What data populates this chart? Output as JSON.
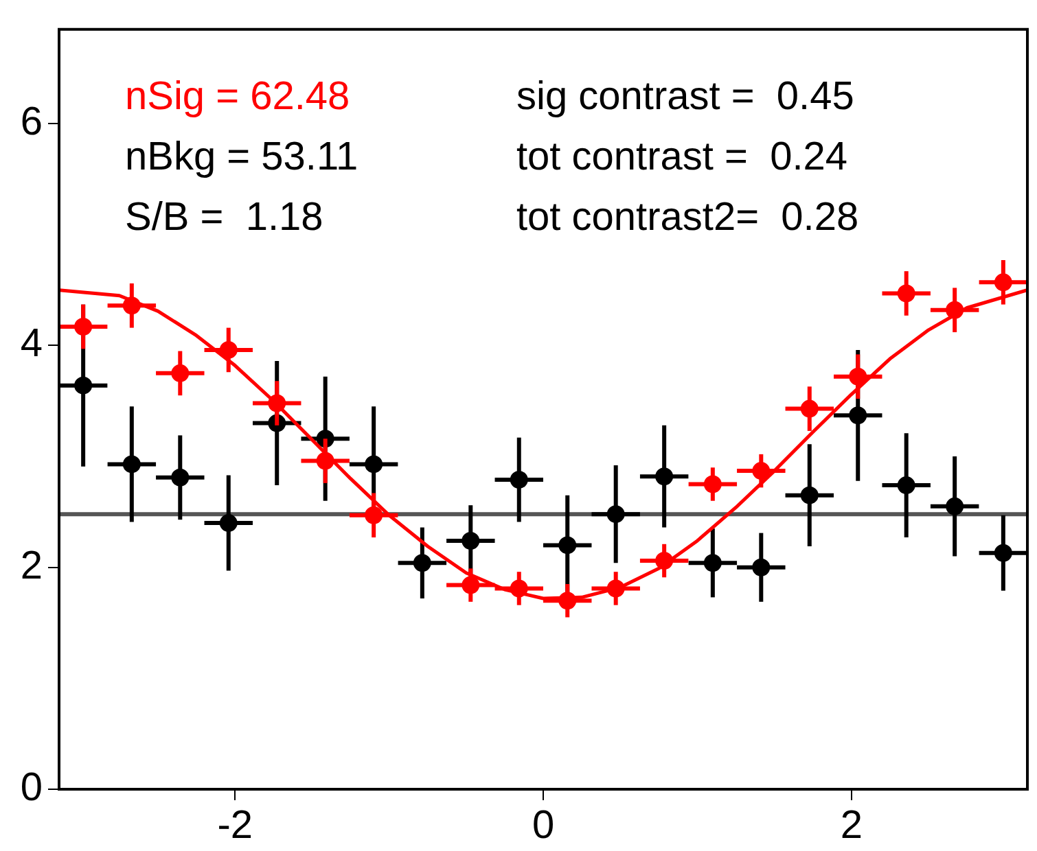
{
  "chart_data": {
    "type": "scatter",
    "xlim": [
      -3.1416,
      3.1416
    ],
    "xticks": [
      -2,
      0,
      2
    ],
    "ylim": [
      0,
      6.85
    ],
    "yticks": [
      0,
      2,
      4,
      6
    ],
    "grid": false,
    "legend": false,
    "marker": "circle",
    "series": [
      {
        "type": "scatter",
        "color": "#ff0000",
        "x": [
          -2.985,
          -2.67,
          -2.356,
          -2.042,
          -1.728,
          -1.414,
          -1.1,
          -0.785,
          -0.471,
          -0.157,
          0.157,
          0.471,
          0.785,
          1.1,
          1.414,
          1.728,
          2.042,
          2.356,
          2.67,
          2.985
        ],
        "values": [
          4.17,
          4.36,
          3.75,
          3.96,
          3.48,
          2.96,
          2.47,
          null,
          1.84,
          1.81,
          1.7,
          1.81,
          2.06,
          2.75,
          2.87,
          3.43,
          3.72,
          4.47,
          4.32,
          4.57
        ],
        "errors": [
          0.2,
          0.2,
          0.2,
          0.2,
          0.2,
          0.2,
          0.2,
          null,
          0.15,
          0.15,
          0.15,
          0.15,
          0.15,
          0.15,
          0.15,
          0.2,
          0.2,
          0.2,
          0.2,
          0.2
        ],
        "xerrors": [
          0.157,
          0.157,
          0.157,
          0.157,
          0.157,
          0.157,
          0.157,
          null,
          0.157,
          0.157,
          0.157,
          0.157,
          0.157,
          0.157,
          0.157,
          0.157,
          0.157,
          0.157,
          0.157,
          0.157
        ]
      },
      {
        "type": "scatter",
        "color": "#000000",
        "x": [
          -2.985,
          -2.67,
          -2.356,
          -2.042,
          -1.728,
          -1.414,
          -1.1,
          -0.785,
          -0.471,
          -0.157,
          0.157,
          0.471,
          0.785,
          1.1,
          1.414,
          1.728,
          2.042,
          2.356,
          2.67,
          2.985
        ],
        "values": [
          3.64,
          2.93,
          2.81,
          2.4,
          3.3,
          3.16,
          2.93,
          2.04,
          2.24,
          2.79,
          2.2,
          2.48,
          2.82,
          2.04,
          2.0,
          2.65,
          3.37,
          2.74,
          2.55,
          2.13
        ],
        "errors": [
          0.73,
          0.52,
          0.38,
          0.43,
          0.56,
          0.56,
          0.52,
          0.32,
          0.32,
          0.38,
          0.45,
          0.44,
          0.46,
          0.31,
          0.31,
          0.46,
          0.59,
          0.47,
          0.45,
          0.34
        ],
        "xerrors": [
          0.157,
          0.157,
          0.157,
          0.157,
          0.157,
          0.157,
          0.157,
          0.157,
          0.157,
          0.157,
          0.157,
          0.157,
          0.157,
          0.157,
          0.157,
          0.157,
          0.157,
          0.157,
          0.157,
          0.157
        ]
      },
      {
        "type": "line",
        "color": "#ff0000",
        "marker": "none",
        "line_style": "solid",
        "x": [
          -3.14,
          -2.75,
          -2.5,
          -2.25,
          -2,
          -1.75,
          -1.5,
          -1.25,
          -1,
          -0.75,
          -0.5,
          -0.25,
          0,
          0.25,
          0.5,
          0.75,
          1,
          1.25,
          1.5,
          1.75,
          2,
          2.25,
          2.5,
          2.75,
          3.14
        ],
        "values": [
          4.5,
          4.45,
          4.31,
          4.09,
          3.82,
          3.5,
          3.15,
          2.8,
          2.47,
          2.19,
          1.95,
          1.8,
          1.72,
          1.73,
          1.82,
          1.99,
          2.24,
          2.54,
          2.87,
          3.22,
          3.56,
          3.88,
          4.14,
          4.34,
          4.5
        ]
      }
    ],
    "ref_lines": [
      {
        "axis": "y",
        "value": 2.48,
        "color": "#555555"
      }
    ],
    "annotations": [
      "nSig = 62.48",
      "nBkg = 53.11",
      "S/B =  1.18",
      "sig contrast =  0.45",
      "tot contrast =  0.24",
      "tot contrast2=  0.28"
    ]
  }
}
